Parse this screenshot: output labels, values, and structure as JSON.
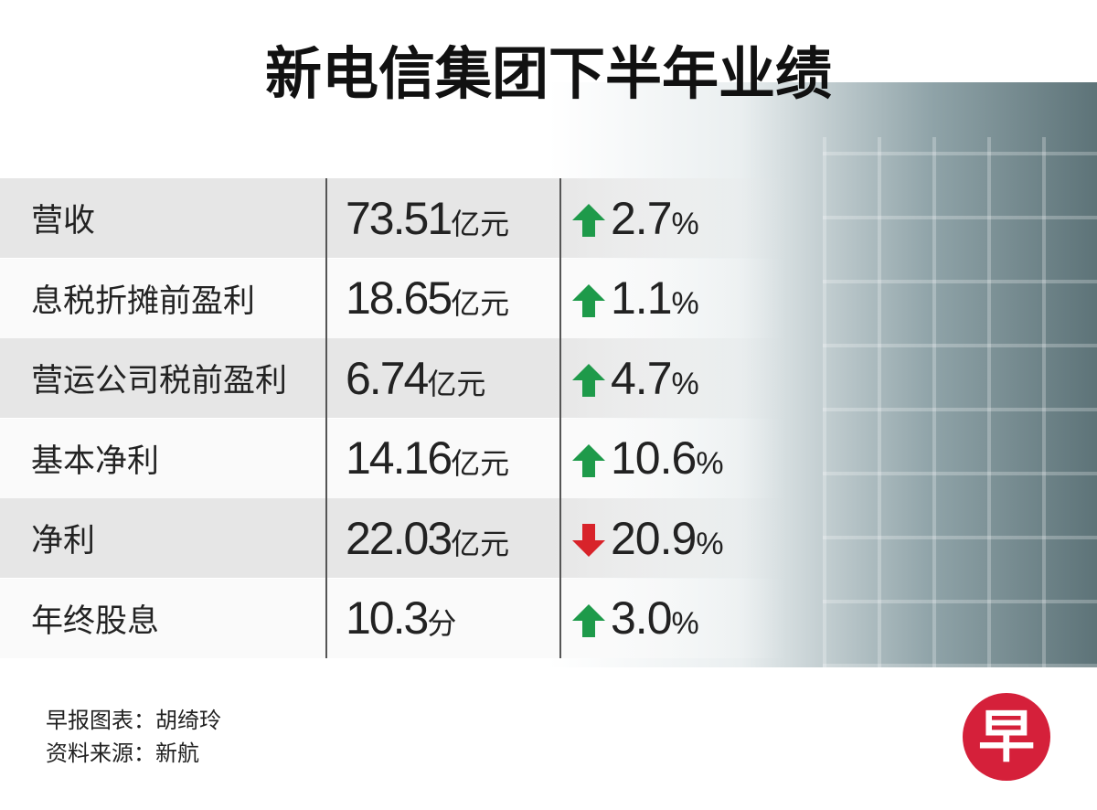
{
  "header": {
    "title": "新电信集团下半年业绩"
  },
  "table": {
    "percent_sign": "%",
    "rows": [
      {
        "label": "营收",
        "value": "73.51",
        "unit": "亿元",
        "direction": "up",
        "change": "2.7"
      },
      {
        "label": "息税折摊前盈利",
        "value": "18.65",
        "unit": "亿元",
        "direction": "up",
        "change": "1.1"
      },
      {
        "label": "营运公司税前盈利",
        "value": "6.74",
        "unit": "亿元",
        "direction": "up",
        "change": "4.7"
      },
      {
        "label": "基本净利",
        "value": "14.16",
        "unit": "亿元",
        "direction": "up",
        "change": "10.6"
      },
      {
        "label": "净利",
        "value": "22.03",
        "unit": "亿元",
        "direction": "down",
        "change": "20.9"
      },
      {
        "label": "年终股息",
        "value": "10.3",
        "unit": "分",
        "direction": "up",
        "change": "3.0"
      }
    ]
  },
  "footer": {
    "credit": "早报图表：胡绮玲",
    "source": "资料来源：新航",
    "logo": "早"
  }
}
